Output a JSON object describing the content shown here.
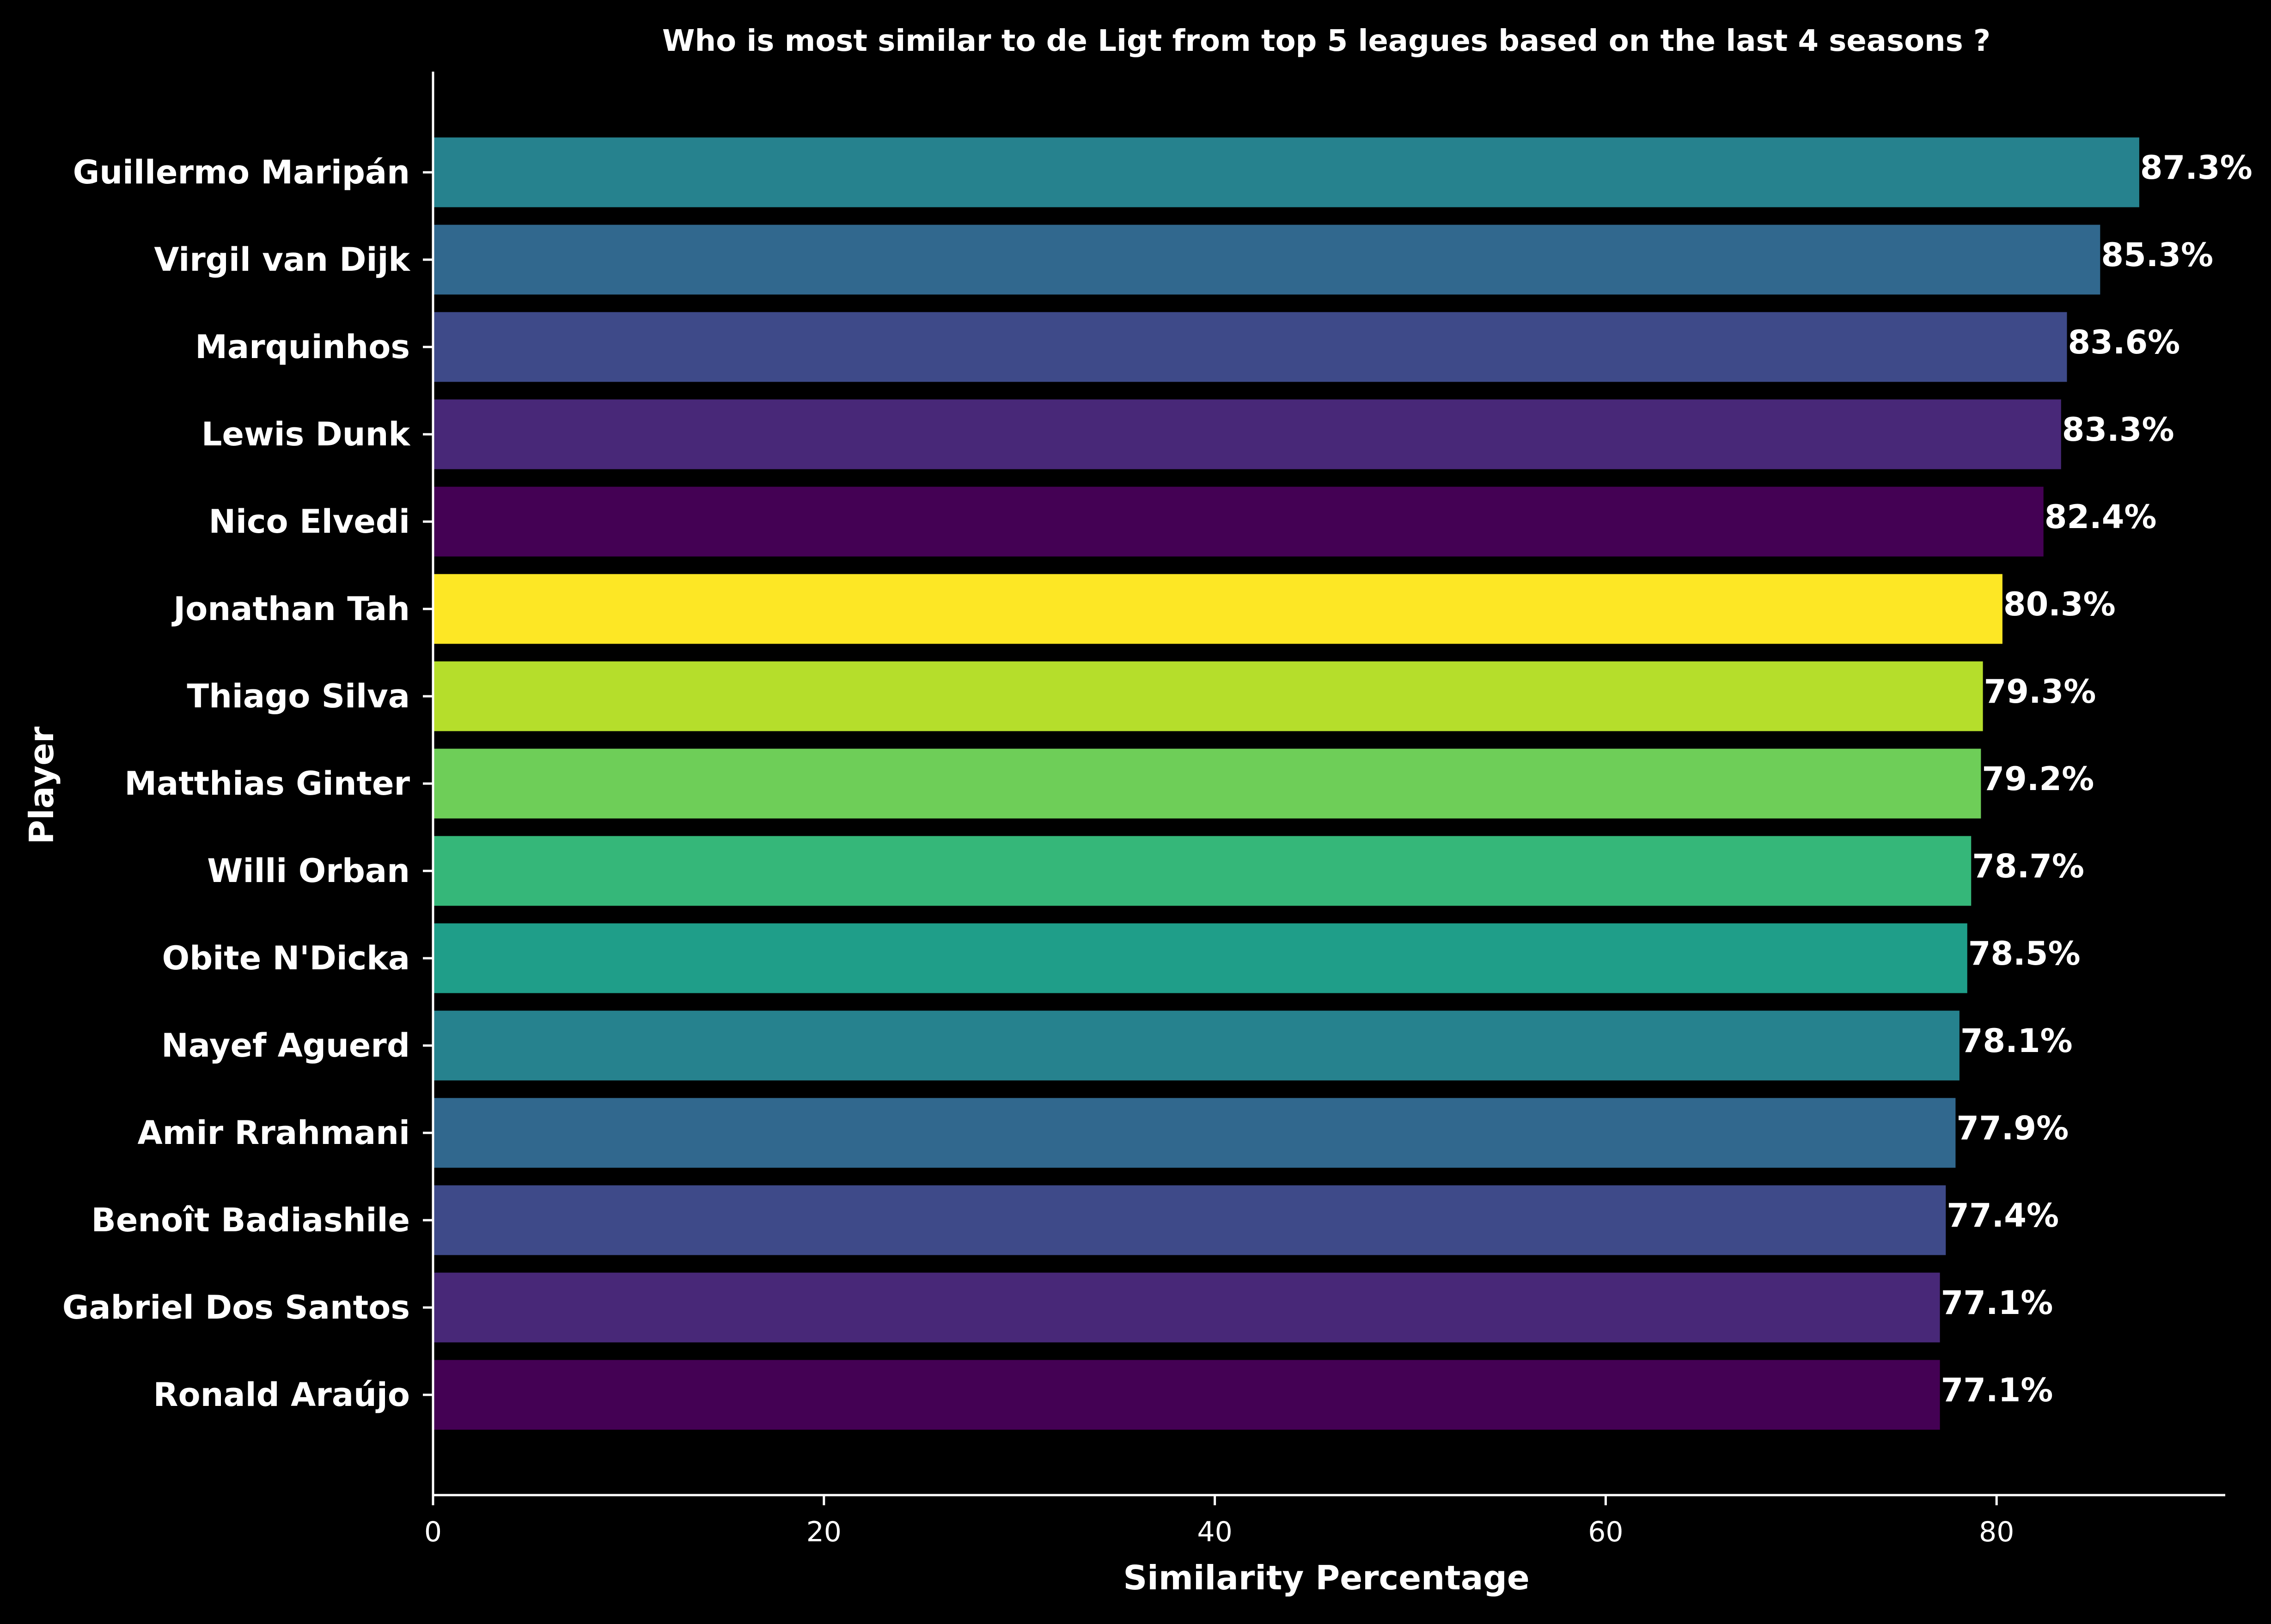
{
  "chart_data": {
    "type": "bar",
    "orientation": "horizontal",
    "title": "Who is most similar to de Ligt from top 5 leagues based on the last 4 seasons ?",
    "xlabel": "Similarity Percentage",
    "ylabel": "Player",
    "xlim": [
      0,
      91.7
    ],
    "xticks": [
      0,
      20,
      40,
      60,
      80
    ],
    "grid": false,
    "legend": "none",
    "value_suffix": "%",
    "categories": [
      "Guillermo Maripán",
      "Virgil van Dijk",
      "Marquinhos",
      "Lewis Dunk",
      "Nico Elvedi",
      "Jonathan Tah",
      "Thiago Silva",
      "Matthias Ginter",
      "Willi Orban",
      "Obite N'Dicka",
      "Nayef Aguerd",
      "Amir Rrahmani",
      "Benoît Badiashile",
      "Gabriel Dos Santos",
      "Ronald Araújo"
    ],
    "values": [
      87.3,
      85.3,
      83.6,
      83.3,
      82.4,
      80.3,
      79.3,
      79.2,
      78.7,
      78.5,
      78.1,
      77.9,
      77.4,
      77.1,
      77.1
    ],
    "value_labels": [
      "87.3%",
      "85.3%",
      "83.6%",
      "83.3%",
      "82.4%",
      "80.3%",
      "79.3%",
      "79.2%",
      "78.7%",
      "78.5%",
      "78.1%",
      "77.9%",
      "77.4%",
      "77.1%",
      "77.1%"
    ],
    "colors": [
      "#26828e",
      "#31688e",
      "#3e4a89",
      "#482878",
      "#440154",
      "#fde725",
      "#b5de2b",
      "#6ece58",
      "#35b779",
      "#1f9e89",
      "#26828e",
      "#31688e",
      "#3e4a89",
      "#482878",
      "#440154"
    ]
  },
  "style": {
    "background": "#000000",
    "text_color": "#ffffff"
  }
}
